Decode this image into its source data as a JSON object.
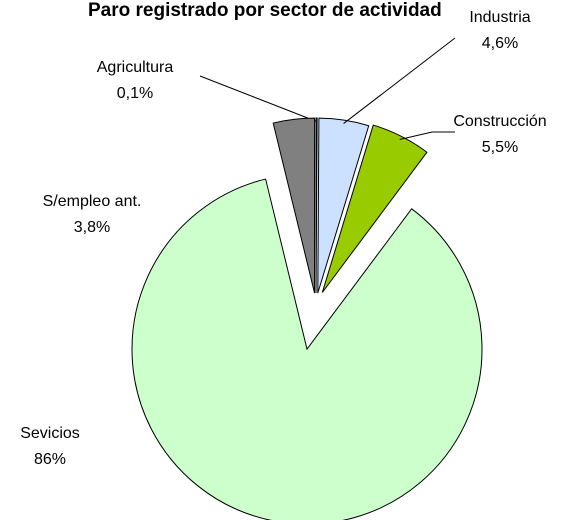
{
  "chart_data": {
    "type": "pie",
    "title": "Paro registrado por sector de actividad",
    "categories": [
      "Agricultura",
      "Industria",
      "Construcción",
      "Sevicios",
      "S/empleo ant."
    ],
    "values": [
      0.1,
      4.6,
      5.5,
      86,
      3.8
    ],
    "value_labels": [
      "0,1%",
      "4,6%",
      "5,5%",
      "86%",
      "3,8%"
    ],
    "colors": [
      "#99ccff",
      "#cce0ff",
      "#99cc00",
      "#ccffcc",
      "#808080"
    ]
  }
}
